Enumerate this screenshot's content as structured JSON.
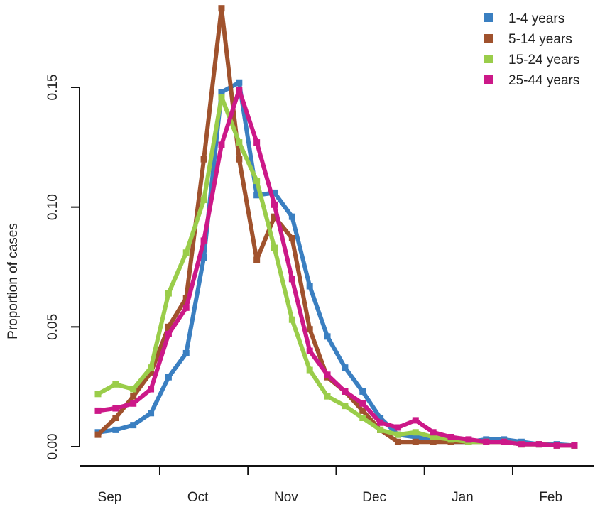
{
  "chart_data": {
    "type": "line",
    "title": "",
    "xlabel": "",
    "ylabel": "Proportion of cases",
    "ylim": [
      0,
      0.15
    ],
    "y_ticks": [
      0.0,
      0.05,
      0.1,
      0.15
    ],
    "y_tick_labels": [
      "0.00",
      "0.05",
      "0.10",
      "0.15"
    ],
    "x_ticks": [
      {
        "label": "Sep",
        "x": 1.5
      },
      {
        "label": "Oct",
        "x": 6.5
      },
      {
        "label": "Nov",
        "x": 11.5
      },
      {
        "label": "Dec",
        "x": 16.5
      },
      {
        "label": "Jan",
        "x": 21.5
      },
      {
        "label": "Feb",
        "x": 26.5
      }
    ],
    "x_boundaries": [
      4,
      9,
      14,
      19,
      24
    ],
    "x_range": [
      0,
      29
    ],
    "legend_position": "top-right",
    "grid": false,
    "series": [
      {
        "name": "1-4 years",
        "color": "#3a7fc1",
        "x": [
          1,
          2,
          3,
          4,
          5,
          6,
          7,
          8,
          9,
          10,
          11,
          12,
          13,
          14,
          15,
          16,
          17,
          18,
          19,
          20,
          21,
          22,
          23,
          24,
          25,
          26,
          27,
          28
        ],
        "values": [
          0.006,
          0.007,
          0.009,
          0.014,
          0.029,
          0.039,
          0.079,
          0.148,
          0.152,
          0.105,
          0.106,
          0.096,
          0.067,
          0.046,
          0.033,
          0.023,
          0.012,
          0.005,
          0.004,
          0.003,
          0.002,
          0.002,
          0.003,
          0.003,
          0.002,
          0.001,
          0.001,
          0.0005
        ]
      },
      {
        "name": "5-14 years",
        "color": "#a0522d",
        "x": [
          1,
          2,
          3,
          4,
          5,
          6,
          7,
          8,
          9,
          10,
          11,
          12,
          13,
          14,
          15,
          16,
          17,
          18,
          19,
          20,
          21,
          22,
          23,
          24,
          25,
          26,
          27,
          28
        ],
        "values": [
          0.005,
          0.012,
          0.021,
          0.031,
          0.05,
          0.062,
          0.12,
          0.183,
          0.12,
          0.078,
          0.096,
          0.087,
          0.049,
          0.029,
          0.023,
          0.015,
          0.007,
          0.002,
          0.002,
          0.002,
          0.002,
          0.002,
          0.002,
          0.002,
          0.001,
          0.001,
          0.0005,
          0.0005
        ]
      },
      {
        "name": "15-24 years",
        "color": "#9acd4a",
        "x": [
          1,
          2,
          3,
          4,
          5,
          6,
          7,
          8,
          9,
          10,
          11,
          12,
          13,
          14,
          15,
          16,
          17,
          18,
          19,
          20,
          21,
          22,
          23,
          24,
          25,
          26,
          27,
          28
        ],
        "values": [
          0.022,
          0.026,
          0.024,
          0.033,
          0.064,
          0.081,
          0.103,
          0.146,
          0.127,
          0.111,
          0.083,
          0.053,
          0.032,
          0.021,
          0.017,
          0.012,
          0.007,
          0.005,
          0.006,
          0.004,
          0.003,
          0.002,
          0.002,
          0.002,
          0.001,
          0.001,
          0.0005,
          0.0005
        ]
      },
      {
        "name": "25-44 years",
        "color": "#cc1888",
        "x": [
          1,
          2,
          3,
          4,
          5,
          6,
          7,
          8,
          9,
          10,
          11,
          12,
          13,
          14,
          15,
          16,
          17,
          18,
          19,
          20,
          21,
          22,
          23,
          24,
          25,
          26,
          27,
          28
        ],
        "values": [
          0.015,
          0.016,
          0.018,
          0.024,
          0.047,
          0.058,
          0.086,
          0.126,
          0.149,
          0.127,
          0.101,
          0.07,
          0.04,
          0.03,
          0.023,
          0.018,
          0.01,
          0.008,
          0.011,
          0.006,
          0.004,
          0.003,
          0.002,
          0.002,
          0.001,
          0.001,
          0.0005,
          0.0005
        ]
      }
    ]
  }
}
